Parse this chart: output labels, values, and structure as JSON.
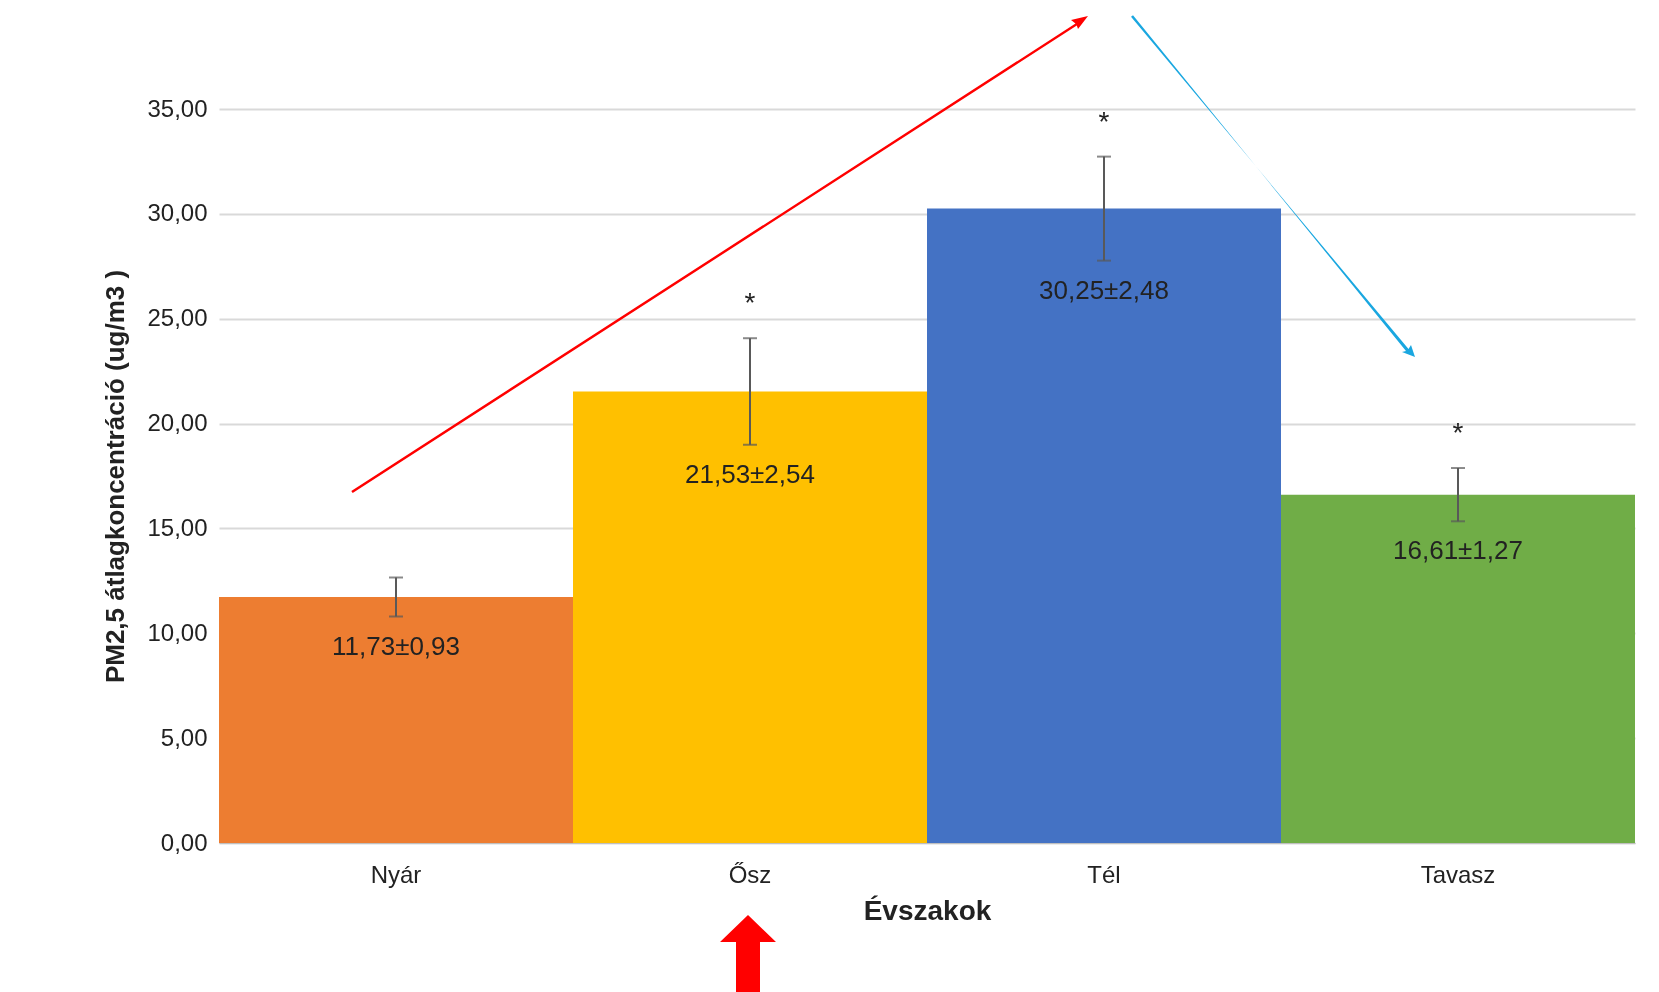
{
  "chart_data": {
    "type": "bar",
    "xlabel": "Évszakok",
    "ylabel": "PM2,5 átlagkoncentráció (ug/m3 )",
    "categories": [
      "Nyár",
      "Ősz",
      "Tél",
      "Tavasz"
    ],
    "values": [
      11.73,
      21.53,
      30.25,
      16.61
    ],
    "colors": [
      "#ed7d31",
      "#ffc000",
      "#4472c4",
      "#70ad47"
    ],
    "errors": [
      0.93,
      2.54,
      2.48,
      1.27
    ],
    "value_labels": [
      "11,73±0,93",
      "21,53±2,54",
      "30,25±2,48",
      "16,61±1,27"
    ],
    "annotations": [
      "*",
      "*",
      "*"
    ],
    "ylim": [
      0,
      35
    ],
    "yticks": [
      {
        "value": 0,
        "label": "0,00"
      },
      {
        "value": 5,
        "label": "5,00"
      },
      {
        "value": 10,
        "label": "10,00"
      },
      {
        "value": 15,
        "label": "15,00"
      },
      {
        "value": 20,
        "label": "20,00"
      },
      {
        "value": 25,
        "label": "25,00"
      },
      {
        "value": 30,
        "label": "30,00"
      },
      {
        "value": 35,
        "label": "35,00"
      }
    ],
    "grid": "y"
  }
}
